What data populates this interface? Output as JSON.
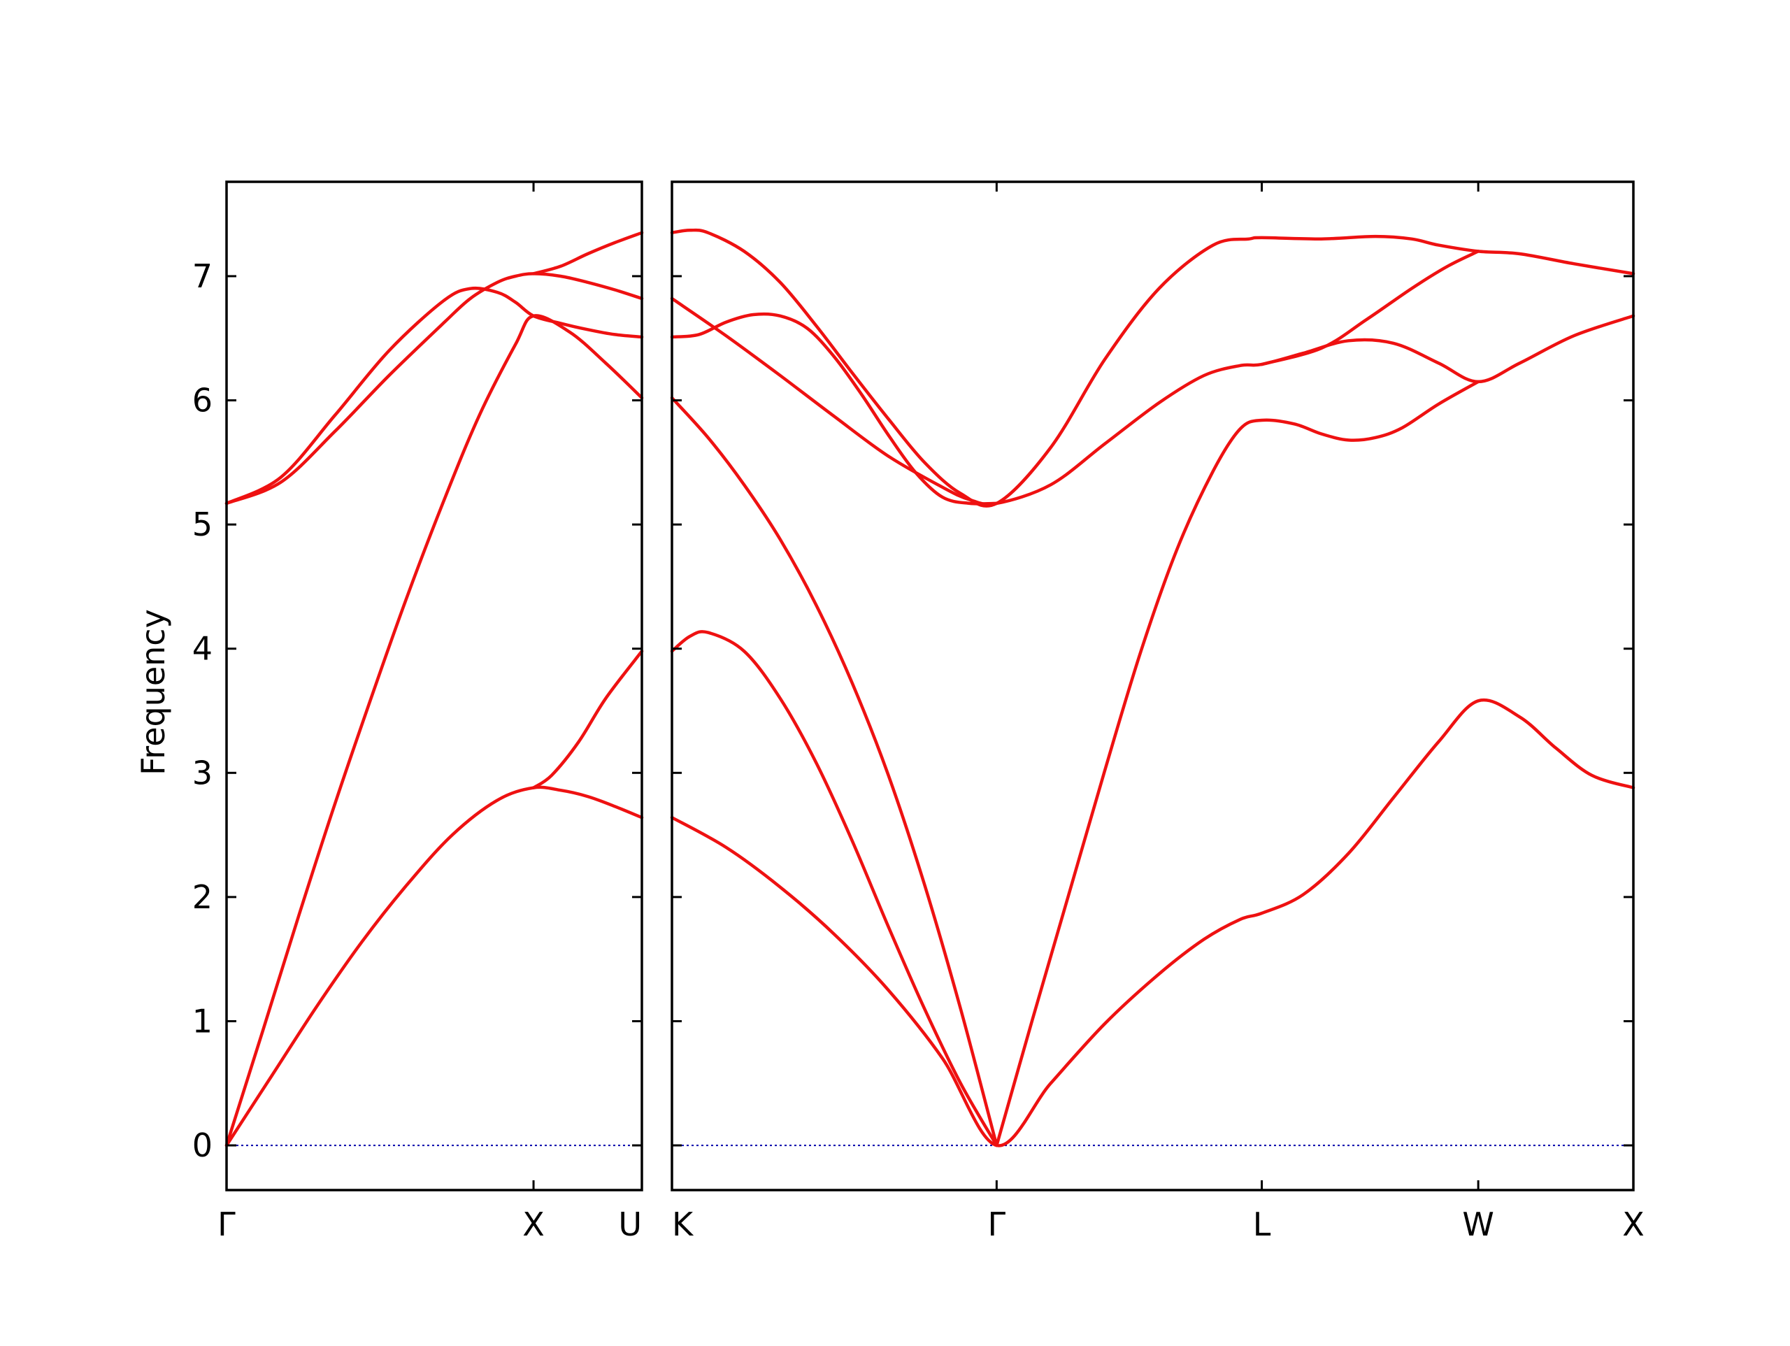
{
  "chart_data": {
    "type": "line",
    "title": "",
    "ylabel": "Frequency",
    "ylim": [
      -0.36,
      7.76
    ],
    "yticks": [
      0,
      1,
      2,
      3,
      4,
      5,
      6,
      7
    ],
    "grid": false,
    "legend": "none",
    "colors": {
      "bands": "#ee1111",
      "zero_line": "#0000aa",
      "frame": "#000000"
    },
    "panels": [
      {
        "id": "left",
        "xlim": [
          0,
          2.3
        ],
        "xticks": [
          {
            "pos": 0,
            "label": "Γ"
          },
          {
            "pos": 1.7,
            "label": "X"
          },
          {
            "pos": 2.3,
            "label": "U"
          }
        ],
        "series": [
          {
            "x": [
              0,
              0.25,
              0.5,
              0.75,
              1.0,
              1.25,
              1.5,
              1.7,
              1.85,
              2.0,
              2.15,
              2.3
            ],
            "y": [
              0,
              0.56,
              1.12,
              1.64,
              2.1,
              2.5,
              2.78,
              2.88,
              2.86,
              2.81,
              2.73,
              2.64
            ]
          },
          {
            "x": [
              0,
              0.2,
              0.4,
              0.6,
              0.8,
              1.0,
              1.2,
              1.4,
              1.6,
              1.7,
              1.9,
              2.1,
              2.3
            ],
            "y": [
              0,
              0.92,
              1.85,
              2.75,
              3.6,
              4.42,
              5.18,
              5.88,
              6.45,
              6.68,
              6.55,
              6.3,
              6.02
            ]
          },
          {
            "x": [
              0,
              0.3,
              0.6,
              0.9,
              1.2,
              1.35,
              1.5,
              1.6,
              1.7,
              1.85,
              2.0,
              2.15,
              2.3
            ],
            "y": [
              5.17,
              5.38,
              5.88,
              6.4,
              6.8,
              6.9,
              6.87,
              6.79,
              6.68,
              6.62,
              6.57,
              6.53,
              6.51
            ]
          },
          {
            "x": [
              0,
              0.3,
              0.6,
              0.9,
              1.2,
              1.35,
              1.5,
              1.6,
              1.7,
              1.85,
              2.0,
              2.15,
              2.3
            ],
            "y": [
              5.17,
              5.34,
              5.75,
              6.2,
              6.62,
              6.82,
              6.95,
              7.0,
              7.02,
              7.0,
              6.95,
              6.89,
              6.82
            ]
          },
          {
            "x": [
              1.7,
              1.85,
              2.0,
              2.15,
              2.3
            ],
            "y": [
              7.02,
              7.08,
              7.18,
              7.27,
              7.35
            ]
          },
          {
            "x": [
              1.7,
              1.8,
              1.95,
              2.1,
              2.3
            ],
            "y": [
              2.88,
              2.98,
              3.25,
              3.6,
              3.98
            ]
          }
        ],
        "zero_line": true
      },
      {
        "id": "right",
        "xlim": [
          0,
          5.33
        ],
        "xticks": [
          {
            "pos": 0,
            "label": "K"
          },
          {
            "pos": 1.8,
            "label": "Γ"
          },
          {
            "pos": 3.27,
            "label": "L"
          },
          {
            "pos": 4.47,
            "label": "W"
          },
          {
            "pos": 5.33,
            "label": "X"
          }
        ],
        "series": [
          {
            "x": [
              0,
              0.3,
              0.6,
              0.9,
              1.2,
              1.5,
              1.8,
              2.1,
              2.4,
              2.7,
              2.95,
              3.15,
              3.27,
              3.5,
              3.75,
              4.0,
              4.25,
              4.47,
              4.7,
              4.9,
              5.1,
              5.33
            ],
            "y": [
              2.64,
              2.4,
              2.08,
              1.7,
              1.25,
              0.7,
              0,
              0.5,
              0.98,
              1.38,
              1.66,
              1.82,
              1.87,
              2.02,
              2.35,
              2.8,
              3.25,
              3.58,
              3.45,
              3.2,
              2.98,
              2.88
            ]
          },
          {
            "x": [
              0,
              0.1,
              0.2,
              0.4,
              0.6,
              0.8,
              1.0,
              1.2,
              1.4,
              1.6,
              1.8
            ],
            "y": [
              3.98,
              4.1,
              4.13,
              3.98,
              3.6,
              3.08,
              2.45,
              1.76,
              1.1,
              0.5,
              0
            ]
          },
          {
            "x": [
              1.8,
              2.0,
              2.2,
              2.4,
              2.6,
              2.8,
              3.0,
              3.15,
              3.27,
              3.45,
              3.6,
              3.75,
              3.9,
              4.05,
              4.25,
              4.47
            ],
            "y": [
              0,
              1.02,
              2.02,
              3.02,
              3.98,
              4.8,
              5.43,
              5.77,
              5.84,
              5.81,
              5.73,
              5.68,
              5.7,
              5.78,
              5.97,
              6.15
            ]
          },
          {
            "x": [
              0,
              0.2,
              0.4,
              0.6,
              0.8,
              1.0,
              1.2,
              1.4,
              1.6,
              1.8
            ],
            "y": [
              6.02,
              5.7,
              5.32,
              4.88,
              4.35,
              3.72,
              2.98,
              2.1,
              1.1,
              0
            ]
          },
          {
            "x": [
              0,
              0.3,
              0.6,
              0.9,
              1.2,
              1.5,
              1.65,
              1.8,
              2.1,
              2.4,
              2.7,
              2.95,
              3.15,
              3.27,
              3.5,
              3.75,
              4.0,
              4.25,
              4.47,
              4.7,
              5.0,
              5.33
            ],
            "y": [
              6.82,
              6.52,
              6.2,
              5.87,
              5.55,
              5.3,
              5.2,
              5.17,
              5.32,
              5.65,
              5.98,
              6.2,
              6.28,
              6.29,
              6.38,
              6.48,
              6.46,
              6.3,
              6.15,
              6.3,
              6.52,
              6.68
            ]
          },
          {
            "x": [
              0,
              0.15,
              0.3,
              0.45,
              0.6,
              0.75,
              0.9,
              1.05,
              1.2,
              1.35,
              1.5,
              1.65,
              1.8
            ],
            "y": [
              6.51,
              6.53,
              6.63,
              6.69,
              6.68,
              6.58,
              6.35,
              6.05,
              5.72,
              5.42,
              5.22,
              5.17,
              5.17
            ]
          },
          {
            "x": [
              0,
              0.1,
              0.2,
              0.4,
              0.6,
              0.8,
              1.0,
              1.2,
              1.4,
              1.6,
              1.8,
              2.1,
              2.4,
              2.7,
              3.0,
              3.2,
              3.27,
              3.6,
              3.9,
              4.1,
              4.25,
              4.47,
              4.7,
              5.0,
              5.33
            ],
            "y": [
              7.35,
              7.37,
              7.35,
              7.2,
              6.95,
              6.6,
              6.22,
              5.85,
              5.5,
              5.25,
              5.17,
              5.62,
              6.33,
              6.9,
              7.25,
              7.3,
              7.31,
              7.3,
              7.32,
              7.3,
              7.25,
              7.2,
              7.18,
              7.1,
              7.02
            ]
          },
          {
            "x": [
              3.27,
              3.6,
              3.85,
              4.1,
              4.3,
              4.47
            ],
            "y": [
              6.29,
              6.42,
              6.65,
              6.9,
              7.08,
              7.2
            ]
          }
        ],
        "zero_line": true
      }
    ]
  }
}
